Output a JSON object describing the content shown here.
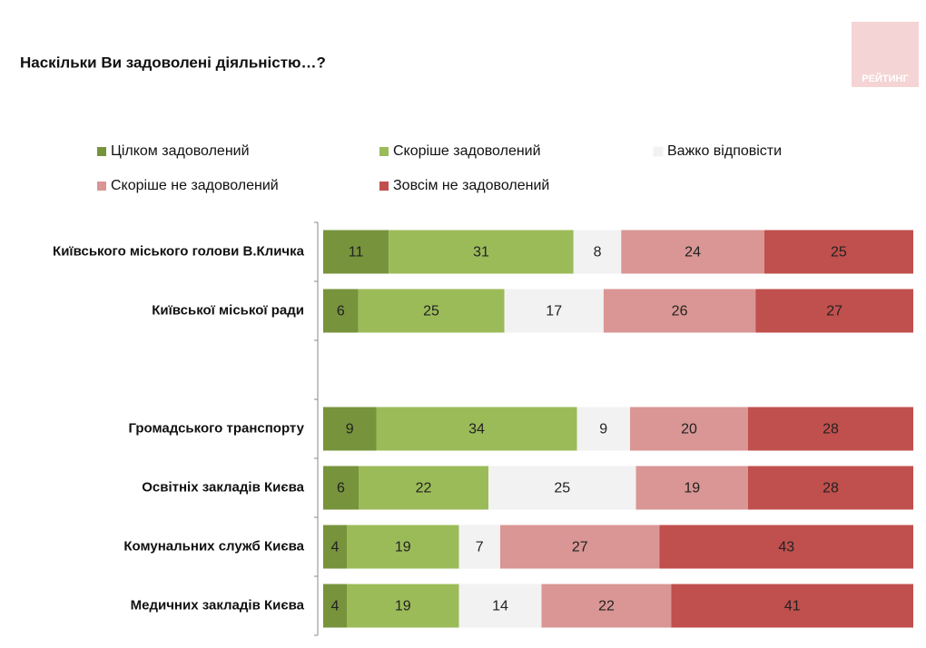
{
  "logo": "РЕЙТИНГ",
  "chart_data": {
    "type": "bar",
    "orientation": "horizontal",
    "stacked": "percent",
    "title": "Наскільки Ви задоволені діяльністю…?",
    "categories": [
      "Київського міського голови В.Кличка",
      "Київської міської ради",
      null,
      "Громадського транспорту",
      "Освітніх закладів Києва",
      "Комунальних служб Києва",
      "Медичних закладів Києва"
    ],
    "series": [
      {
        "name": "Цілком задоволений",
        "color": "#77933c",
        "values": [
          11,
          6,
          null,
          9,
          6,
          4,
          4
        ]
      },
      {
        "name": "Скоріше задоволений",
        "color": "#9bbb59",
        "values": [
          31,
          25,
          null,
          34,
          22,
          19,
          19
        ]
      },
      {
        "name": "Важко відповісти",
        "color": "#f2f2f2",
        "values": [
          8,
          17,
          null,
          9,
          25,
          7,
          14
        ]
      },
      {
        "name": "Скоріше не задоволений",
        "color": "#d99694",
        "values": [
          24,
          26,
          null,
          20,
          19,
          27,
          22
        ]
      },
      {
        "name": "Зовсім не задоволений",
        "color": "#c0504d",
        "values": [
          25,
          27,
          null,
          28,
          28,
          43,
          41
        ]
      }
    ]
  }
}
